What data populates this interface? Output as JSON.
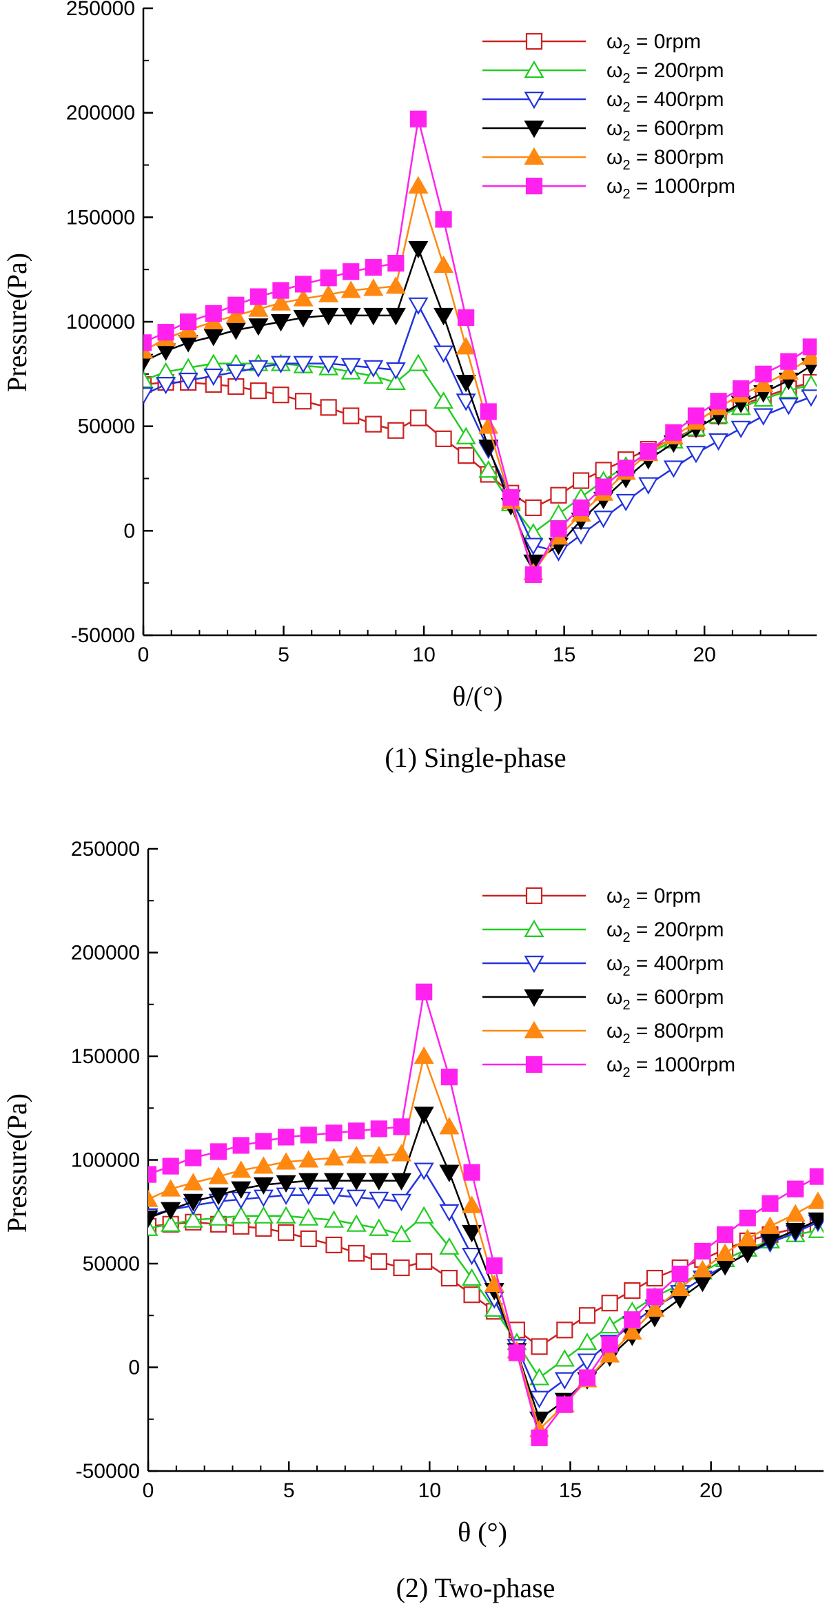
{
  "chart_data": [
    {
      "type": "line",
      "caption": "(1) Single-phase",
      "xlabel": "θ/(°)",
      "ylabel": "Pressure(Pa)",
      "xlim": [
        0,
        24
      ],
      "ylim": [
        -50000,
        250000
      ],
      "xticks": [
        "0",
        "5",
        "10",
        "15",
        "20"
      ],
      "yticks": [
        "-50000",
        "0",
        "50000",
        "100000",
        "150000",
        "200000",
        "250000"
      ],
      "legend_position": "top-right",
      "series": [
        {
          "name": "ω2 = 0rpm",
          "legend_base": "ω",
          "legend_sub": "2",
          "legend_rest": " = 0rpm",
          "color": "#cc2222",
          "marker": "square-open",
          "x": [
            0,
            0.8,
            1.6,
            2.5,
            3.3,
            4.1,
            4.9,
            5.7,
            6.6,
            7.4,
            8.2,
            9.0,
            9.8,
            10.7,
            11.5,
            12.3,
            13.1,
            13.9,
            14.8,
            15.6,
            16.4,
            17.2,
            18.0,
            18.9,
            19.7,
            20.5,
            21.3,
            22.1,
            23.0,
            23.8
          ],
          "y": [
            70000,
            71000,
            71000,
            70000,
            69000,
            67000,
            65000,
            62000,
            59000,
            55000,
            51000,
            48000,
            54000,
            44000,
            36000,
            27000,
            18000,
            11000,
            17000,
            24000,
            29000,
            34000,
            39000,
            44000,
            49000,
            55000,
            60000,
            64000,
            68000,
            71000
          ]
        },
        {
          "name": "ω2 = 200rpm",
          "legend_base": "ω",
          "legend_sub": "2",
          "legend_rest": " = 200rpm",
          "color": "#22cc22",
          "marker": "triangle-up-open",
          "x": [
            0,
            0.8,
            1.6,
            2.5,
            3.3,
            4.1,
            4.9,
            5.7,
            6.6,
            7.4,
            8.2,
            9.0,
            9.8,
            10.7,
            11.5,
            12.3,
            13.1,
            13.9,
            14.8,
            15.6,
            16.4,
            17.2,
            18.0,
            18.9,
            19.7,
            20.5,
            21.3,
            22.1,
            23.0,
            23.8
          ],
          "y": [
            72000,
            76000,
            78000,
            80000,
            80000,
            80000,
            80000,
            79000,
            78000,
            76000,
            74000,
            71000,
            80000,
            62000,
            45000,
            29000,
            13000,
            -1000,
            8000,
            16000,
            24000,
            31000,
            37000,
            43000,
            49000,
            55000,
            59000,
            63000,
            67000,
            70000
          ]
        },
        {
          "name": "ω2 = 400rpm",
          "legend_base": "ω",
          "legend_sub": "2",
          "legend_rest": " = 400rpm",
          "color": "#2233dd",
          "marker": "triangle-down-open",
          "x": [
            0,
            0.8,
            1.6,
            2.5,
            3.3,
            4.1,
            4.9,
            5.7,
            6.6,
            7.4,
            8.2,
            9.0,
            9.8,
            10.7,
            11.5,
            12.3,
            13.1,
            13.9,
            14.8,
            15.6,
            16.4,
            17.2,
            18.0,
            18.9,
            19.7,
            20.5,
            21.3,
            22.1,
            23.0,
            23.8
          ],
          "y": [
            65000,
            70000,
            72000,
            74000,
            76000,
            78000,
            80000,
            80000,
            80000,
            79000,
            78000,
            77000,
            108000,
            85000,
            62000,
            39000,
            16000,
            -7000,
            -10000,
            -2000,
            6000,
            14000,
            22000,
            30000,
            37000,
            43000,
            49000,
            55000,
            60000,
            64000
          ]
        },
        {
          "name": "ω2 = 600rpm",
          "legend_base": "ω",
          "legend_sub": "2",
          "legend_rest": " = 600rpm",
          "color": "#000000",
          "marker": "triangle-down-filled",
          "x": [
            0,
            0.8,
            1.6,
            2.5,
            3.3,
            4.1,
            4.9,
            5.7,
            6.6,
            7.4,
            8.2,
            9.0,
            9.8,
            10.7,
            11.5,
            12.3,
            13.1,
            13.9,
            14.8,
            15.6,
            16.4,
            17.2,
            18.0,
            18.9,
            19.7,
            20.5,
            21.3,
            22.1,
            23.0,
            23.8
          ],
          "y": [
            81000,
            86000,
            90000,
            93000,
            96000,
            98000,
            100000,
            102000,
            103000,
            103000,
            103000,
            103000,
            135000,
            103000,
            71000,
            40000,
            12000,
            -15000,
            -7000,
            5000,
            15000,
            25000,
            34000,
            42000,
            49000,
            55000,
            61000,
            66000,
            72000,
            79000
          ]
        },
        {
          "name": "ω2 = 800rpm",
          "legend_base": "ω",
          "legend_sub": "2",
          "legend_rest": " = 800rpm",
          "color": "#ff8811",
          "marker": "triangle-up-filled",
          "x": [
            0,
            0.8,
            1.6,
            2.5,
            3.3,
            4.1,
            4.9,
            5.7,
            6.6,
            7.4,
            8.2,
            9.0,
            9.8,
            10.7,
            11.5,
            12.3,
            13.1,
            13.9,
            14.8,
            15.6,
            16.4,
            17.2,
            18.0,
            18.9,
            19.7,
            20.5,
            21.3,
            22.1,
            23.0,
            23.8
          ],
          "y": [
            86000,
            92000,
            96000,
            100000,
            103000,
            106000,
            109000,
            111000,
            113000,
            115000,
            116000,
            117000,
            165000,
            127000,
            88000,
            50000,
            14000,
            -20000,
            -3000,
            8000,
            18000,
            28000,
            37000,
            45000,
            52000,
            59000,
            65000,
            70000,
            76000,
            83000
          ]
        },
        {
          "name": "ω2 = 1000rpm",
          "legend_base": "ω",
          "legend_sub": "2",
          "legend_rest": " = 1000rpm",
          "color": "#ff22ee",
          "marker": "square-filled",
          "x": [
            0,
            0.8,
            1.6,
            2.5,
            3.3,
            4.1,
            4.9,
            5.7,
            6.6,
            7.4,
            8.2,
            9.0,
            9.8,
            10.7,
            11.5,
            12.3,
            13.1,
            13.9,
            14.8,
            15.6,
            16.4,
            17.2,
            18.0,
            18.9,
            19.7,
            20.5,
            21.3,
            22.1,
            23.0,
            23.8
          ],
          "y": [
            90000,
            95000,
            100000,
            104000,
            108000,
            112000,
            115000,
            118000,
            121000,
            124000,
            126000,
            128000,
            197000,
            149000,
            102000,
            57000,
            16000,
            -21000,
            1000,
            11000,
            21000,
            30000,
            38000,
            47000,
            55000,
            62000,
            68000,
            75000,
            81000,
            88000
          ]
        }
      ]
    },
    {
      "type": "line",
      "caption": "(2) Two-phase",
      "xlabel": "θ (°)",
      "ylabel": "Pressure(Pa)",
      "xlim": [
        0,
        24
      ],
      "ylim": [
        -50000,
        250000
      ],
      "xticks": [
        "0",
        "5",
        "10",
        "15",
        "20"
      ],
      "yticks": [
        "-50000",
        "0",
        "50000",
        "100000",
        "150000",
        "200000",
        "250000"
      ],
      "legend_position": "top-right",
      "series": [
        {
          "name": "ω2 = 0rpm",
          "legend_base": "ω",
          "legend_sub": "2",
          "legend_rest": " = 0rpm",
          "color": "#cc2222",
          "marker": "square-open",
          "x": [
            0,
            0.8,
            1.6,
            2.5,
            3.3,
            4.1,
            4.9,
            5.7,
            6.6,
            7.4,
            8.2,
            9.0,
            9.8,
            10.7,
            11.5,
            12.3,
            13.1,
            13.9,
            14.8,
            15.6,
            16.4,
            17.2,
            18.0,
            18.9,
            19.7,
            20.5,
            21.3,
            22.1,
            23.0,
            23.8
          ],
          "y": [
            68000,
            69000,
            70000,
            69000,
            68000,
            67000,
            65000,
            62000,
            59000,
            55000,
            51000,
            48000,
            51000,
            43000,
            35000,
            27000,
            18000,
            10000,
            18000,
            25000,
            31000,
            37000,
            43000,
            48000,
            52000,
            57000,
            61000,
            64000,
            67000,
            69000
          ]
        },
        {
          "name": "ω2 = 200rpm",
          "legend_base": "ω",
          "legend_sub": "2",
          "legend_rest": " = 200rpm",
          "color": "#22cc22",
          "marker": "triangle-up-open",
          "x": [
            0,
            0.8,
            1.6,
            2.5,
            3.3,
            4.1,
            4.9,
            5.7,
            6.6,
            7.4,
            8.2,
            9.0,
            9.8,
            10.7,
            11.5,
            12.3,
            13.1,
            13.9,
            14.8,
            15.6,
            16.4,
            17.2,
            18.0,
            18.9,
            19.7,
            20.5,
            21.3,
            22.1,
            23.0,
            23.8
          ],
          "y": [
            67000,
            69000,
            71000,
            72000,
            73000,
            73000,
            73000,
            72000,
            71000,
            69000,
            67000,
            64000,
            73000,
            58000,
            43000,
            28000,
            12000,
            -5000,
            4000,
            12000,
            20000,
            27000,
            34000,
            40000,
            46000,
            52000,
            57000,
            61000,
            64000,
            66000
          ]
        },
        {
          "name": "ω2 = 400rpm",
          "legend_base": "ω",
          "legend_sub": "2",
          "legend_rest": " = 400rpm",
          "color": "#2233dd",
          "marker": "triangle-down-open",
          "x": [
            0,
            0.8,
            1.6,
            2.5,
            3.3,
            4.1,
            4.9,
            5.7,
            6.6,
            7.4,
            8.2,
            9.0,
            9.8,
            10.7,
            11.5,
            12.3,
            13.1,
            13.9,
            14.8,
            15.6,
            16.4,
            17.2,
            18.0,
            18.9,
            19.7,
            20.5,
            21.3,
            22.1,
            23.0,
            23.8
          ],
          "y": [
            73000,
            76000,
            78000,
            80000,
            81000,
            82000,
            83000,
            83000,
            83000,
            82000,
            81000,
            80000,
            95000,
            75000,
            54000,
            33000,
            10000,
            -15000,
            -6000,
            3000,
            12000,
            21000,
            29000,
            36000,
            43000,
            49000,
            55000,
            60000,
            65000,
            70000
          ]
        },
        {
          "name": "ω2 = 600rpm",
          "legend_base": "ω",
          "legend_sub": "2",
          "legend_rest": " = 600rpm",
          "color": "#000000",
          "marker": "triangle-down-filled",
          "x": [
            0,
            0.8,
            1.6,
            2.5,
            3.3,
            4.1,
            4.9,
            5.7,
            6.6,
            7.4,
            8.2,
            9.0,
            9.8,
            10.7,
            11.5,
            12.3,
            13.1,
            13.9,
            14.8,
            15.6,
            16.4,
            17.2,
            18.0,
            18.9,
            19.7,
            20.5,
            21.3,
            22.1,
            23.0,
            23.8
          ],
          "y": [
            72000,
            76000,
            80000,
            83000,
            86000,
            88000,
            89000,
            90000,
            90000,
            90000,
            90000,
            90000,
            122000,
            94000,
            65000,
            37000,
            8000,
            -25000,
            -16000,
            -6000,
            5000,
            15000,
            24000,
            33000,
            41000,
            49000,
            55000,
            61000,
            66000,
            71000
          ]
        },
        {
          "name": "ω2 = 800rpm",
          "legend_base": "ω",
          "legend_sub": "2",
          "legend_rest": " = 800rpm",
          "color": "#ff8811",
          "marker": "triangle-up-filled",
          "x": [
            0,
            0.8,
            1.6,
            2.5,
            3.3,
            4.1,
            4.9,
            5.7,
            6.6,
            7.4,
            8.2,
            9.0,
            9.8,
            10.7,
            11.5,
            12.3,
            13.1,
            13.9,
            14.8,
            15.6,
            16.4,
            17.2,
            18.0,
            18.9,
            19.7,
            20.5,
            21.3,
            22.1,
            23.0,
            23.8
          ],
          "y": [
            81000,
            86000,
            89000,
            92000,
            95000,
            97000,
            99000,
            100000,
            101000,
            102000,
            102000,
            103000,
            150000,
            116000,
            78000,
            40000,
            8000,
            -30000,
            -18000,
            -6000,
            6000,
            17000,
            28000,
            38000,
            47000,
            55000,
            62000,
            68000,
            74000,
            80000
          ]
        },
        {
          "name": "ω2 = 1000rpm",
          "legend_base": "ω",
          "legend_sub": "2",
          "legend_rest": " = 1000rpm",
          "color": "#ff22ee",
          "marker": "square-filled",
          "x": [
            0,
            0.8,
            1.6,
            2.5,
            3.3,
            4.1,
            4.9,
            5.7,
            6.6,
            7.4,
            8.2,
            9.0,
            9.8,
            10.7,
            11.5,
            12.3,
            13.1,
            13.9,
            14.8,
            15.6,
            16.4,
            17.2,
            18.0,
            18.9,
            19.7,
            20.5,
            21.3,
            22.1,
            23.0,
            23.8
          ],
          "y": [
            93000,
            97000,
            101000,
            104000,
            107000,
            109000,
            111000,
            112000,
            113000,
            114000,
            115000,
            116000,
            181000,
            140000,
            94000,
            49000,
            7000,
            -34000,
            -18000,
            -5000,
            11000,
            23000,
            34000,
            45000,
            56000,
            64000,
            72000,
            79000,
            86000,
            92000
          ]
        }
      ]
    }
  ]
}
